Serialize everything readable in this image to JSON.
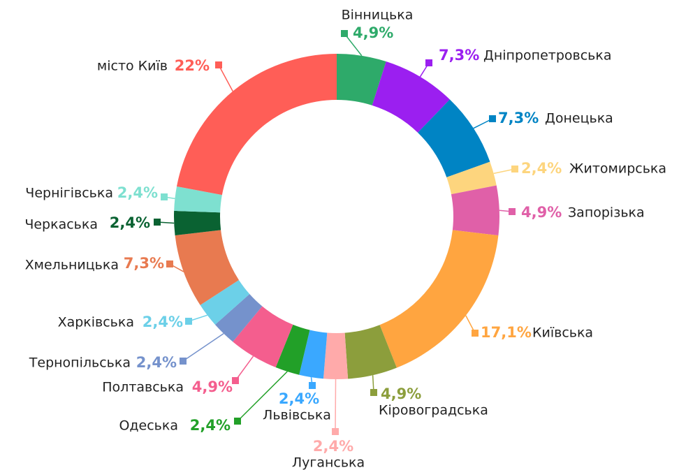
{
  "chart_data": {
    "type": "donut",
    "categories": [
      "Вінницька",
      "Дніпропетровська",
      "Донецька",
      "Житомирська",
      "Запорізька",
      "Київська",
      "Кіровоградська",
      "Луганська",
      "Львівська",
      "Одеська",
      "Полтавська",
      "Тернопільська",
      "Харківська",
      "Хмельницька",
      "Черкаська",
      "Чернігівська",
      "місто Київ"
    ],
    "values": [
      4.9,
      7.3,
      7.3,
      2.4,
      4.9,
      17.1,
      4.9,
      2.4,
      2.4,
      2.4,
      4.9,
      2.4,
      2.4,
      7.3,
      2.4,
      2.4,
      22
    ],
    "value_labels": [
      "4,9%",
      "7,3%",
      "7,3%",
      "2,4%",
      "4,9%",
      "17,1%",
      "4,9%",
      "2,4%",
      "2,4%",
      "2,4%",
      "4,9%",
      "2,4%",
      "2,4%",
      "7,3%",
      "2,4%",
      "2,4%",
      "22%"
    ],
    "colors": [
      "#2eaa6a",
      "#9b1ff0",
      "#0084c4",
      "#fdd57e",
      "#e060a8",
      "#ffa540",
      "#8c9e3c",
      "#ffaaaa",
      "#3aa8ff",
      "#22a028",
      "#f45e8e",
      "#7592cc",
      "#6cd0e8",
      "#e87a50",
      "#0a6232",
      "#7ee0d0",
      "#ff5e57"
    ]
  }
}
